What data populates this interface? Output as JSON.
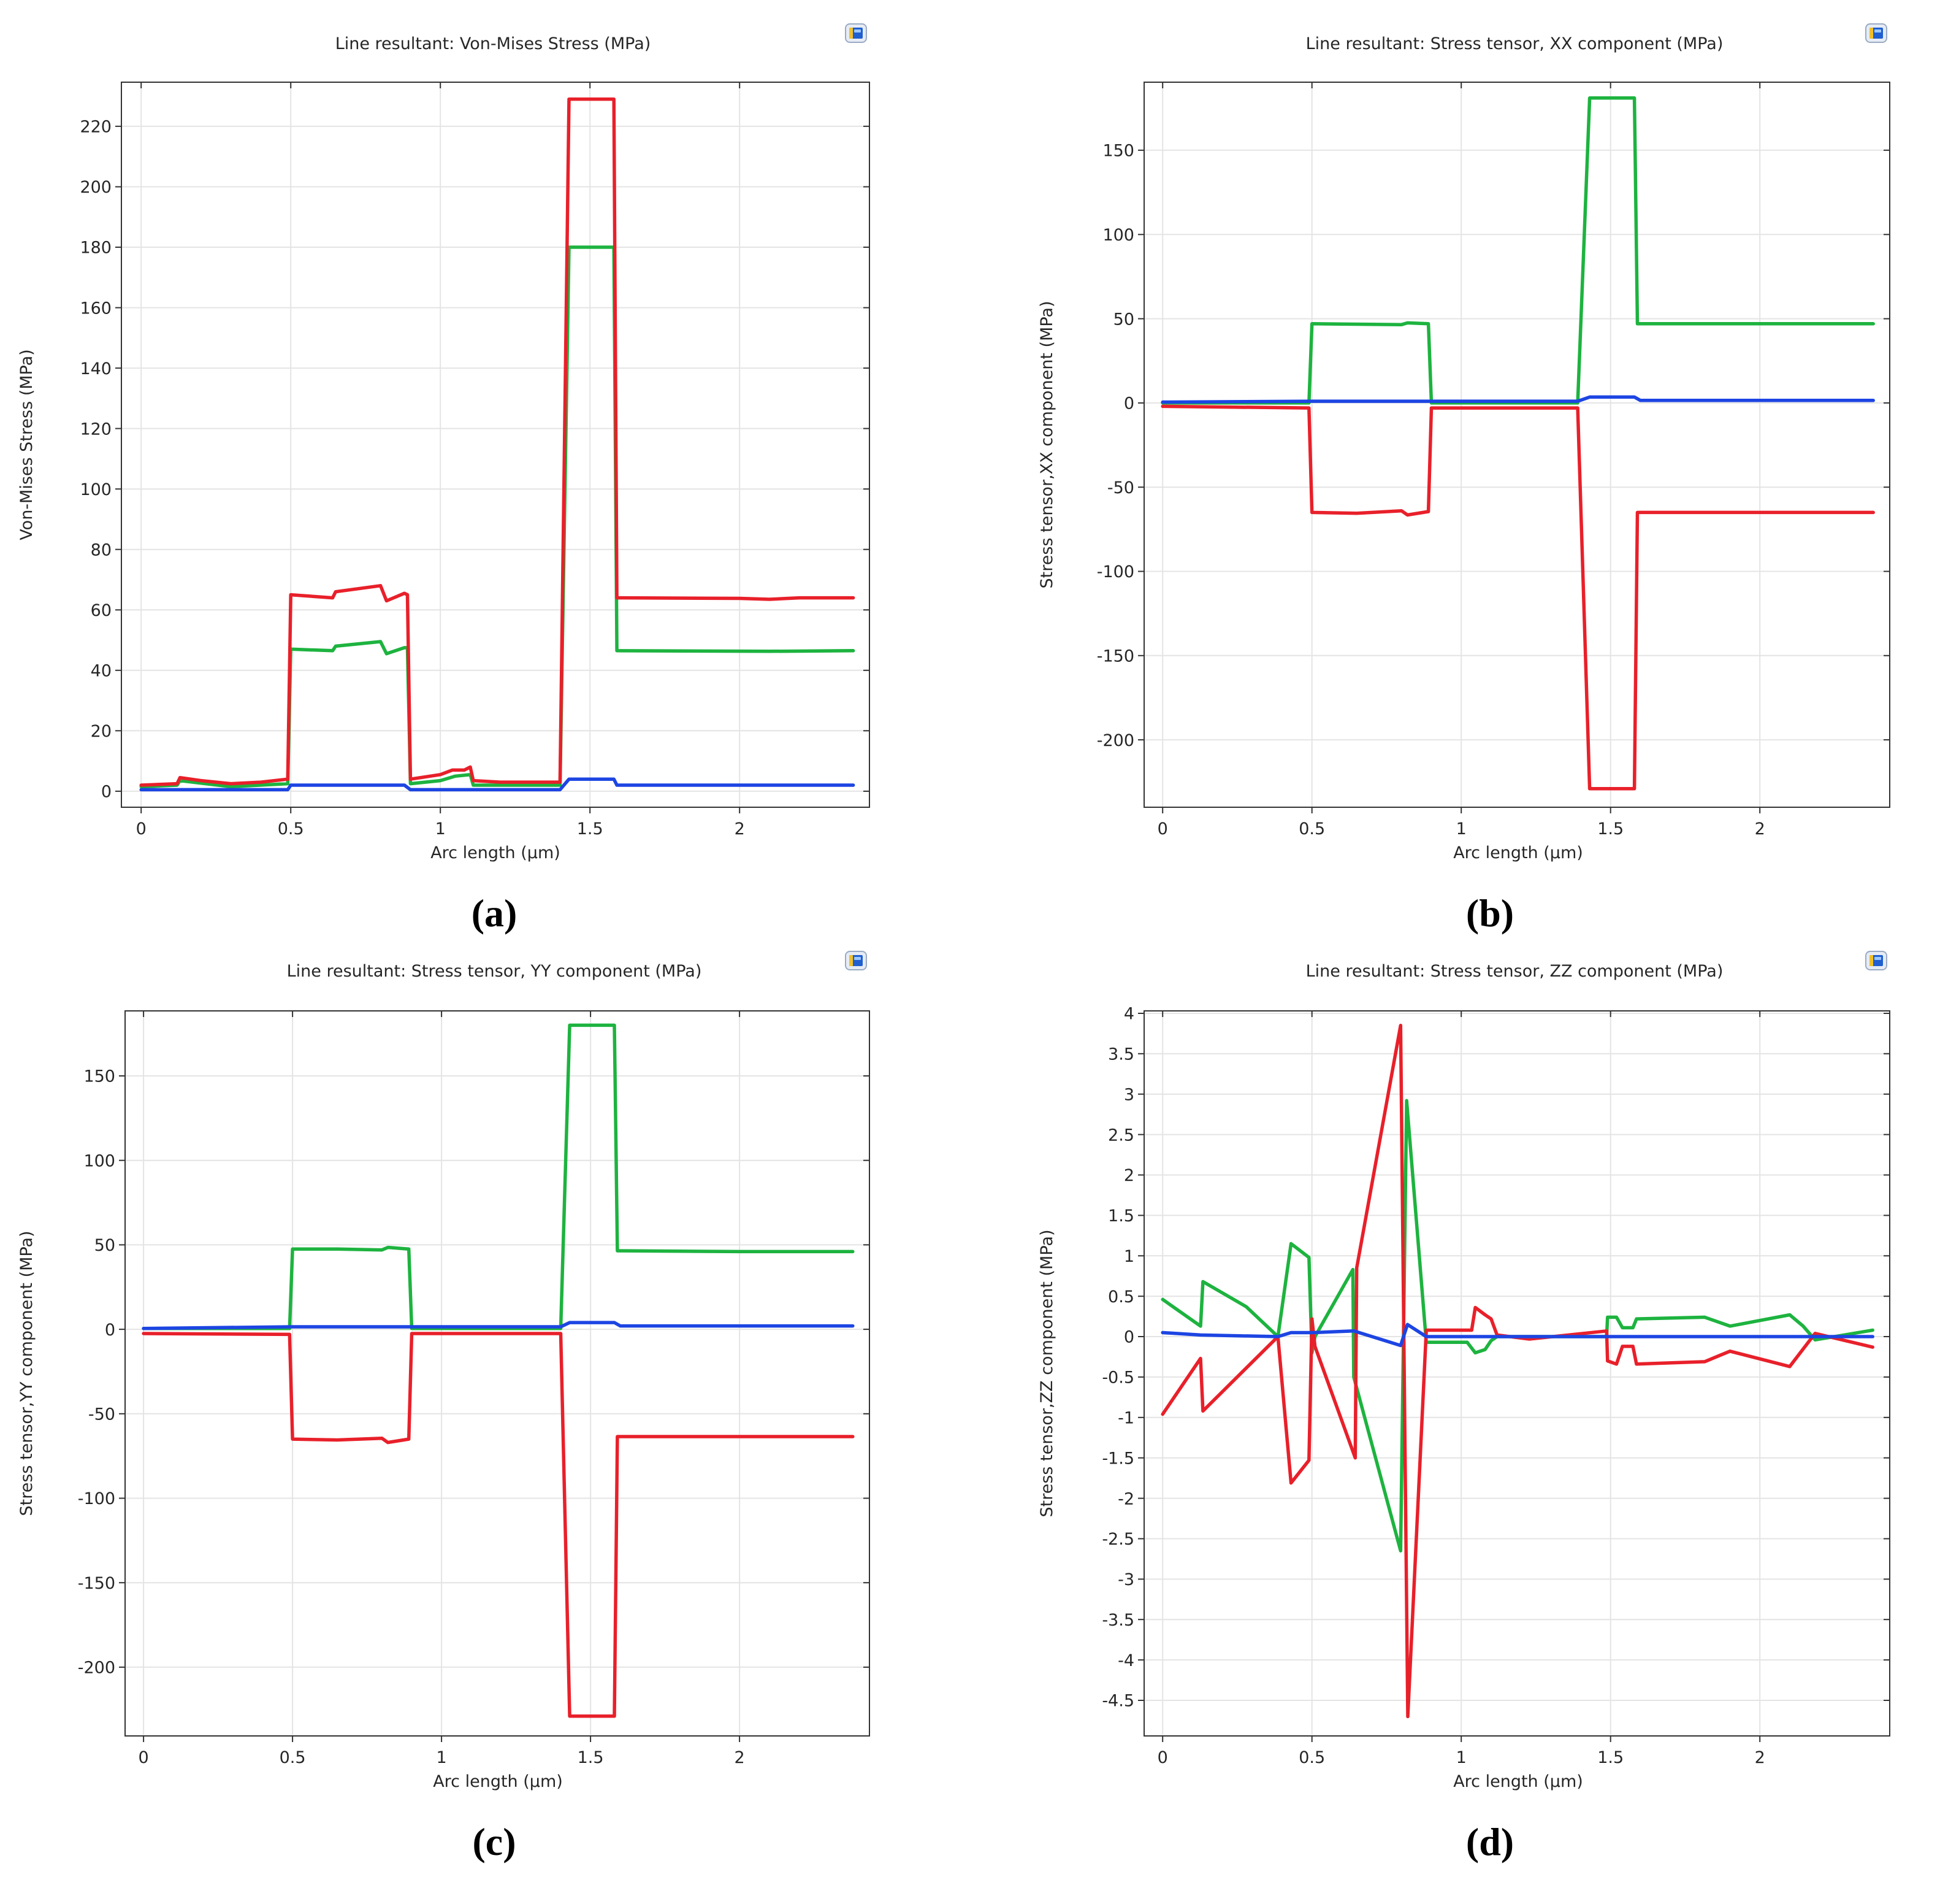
{
  "toolbar_icon": "plot-toolbar-icon",
  "chart_data": [
    {
      "type": "line",
      "title": "Line resultant: Von-Mises Stress (MPa)",
      "xlabel": "Arc length (μm)",
      "ylabel": "Von-Mises Stress (MPa)",
      "caption": "(a)",
      "grid": true,
      "xlim": [
        -0.066,
        2.434
      ],
      "ylim": [
        -5.3,
        234.6
      ],
      "xticks": [
        0,
        0.5,
        1,
        1.5,
        2
      ],
      "xtick_labels": [
        "0",
        "0.5",
        "1",
        "1.5",
        "2"
      ],
      "yticks": [
        0,
        20,
        40,
        60,
        80,
        100,
        120,
        140,
        160,
        180,
        200,
        220
      ],
      "ytick_labels": [
        "0",
        "20",
        "40",
        "60",
        "80",
        "100",
        "120",
        "140",
        "160",
        "180",
        "200",
        "220"
      ],
      "series": [
        {
          "color": "#1db33f",
          "points": [
            [
              0,
              1.5
            ],
            [
              0.12,
              2
            ],
            [
              0.13,
              3.5
            ],
            [
              0.3,
              1.5
            ],
            [
              0.49,
              2.5
            ],
            [
              0.5,
              47
            ],
            [
              0.64,
              46.5
            ],
            [
              0.65,
              48
            ],
            [
              0.8,
              49.5
            ],
            [
              0.82,
              45.5
            ],
            [
              0.88,
              47.5
            ],
            [
              0.89,
              47.5
            ],
            [
              0.9,
              2.5
            ],
            [
              1.0,
              3.5
            ],
            [
              1.05,
              5
            ],
            [
              1.1,
              5.5
            ],
            [
              1.11,
              2
            ],
            [
              1.4,
              2
            ],
            [
              1.43,
              180
            ],
            [
              1.58,
              180
            ],
            [
              1.59,
              46.5
            ],
            [
              2.1,
              46.3
            ],
            [
              2.38,
              46.5
            ]
          ]
        },
        {
          "color": "#e8202a",
          "points": [
            [
              0,
              2
            ],
            [
              0.12,
              2.5
            ],
            [
              0.13,
              4.5
            ],
            [
              0.2,
              3.5
            ],
            [
              0.3,
              2.5
            ],
            [
              0.4,
              3
            ],
            [
              0.49,
              4
            ],
            [
              0.5,
              65
            ],
            [
              0.64,
              64
            ],
            [
              0.65,
              66
            ],
            [
              0.8,
              68
            ],
            [
              0.82,
              63
            ],
            [
              0.88,
              65.5
            ],
            [
              0.89,
              65
            ],
            [
              0.9,
              4
            ],
            [
              1.0,
              5.5
            ],
            [
              1.04,
              7
            ],
            [
              1.08,
              7
            ],
            [
              1.1,
              8
            ],
            [
              1.11,
              3.5
            ],
            [
              1.2,
              3
            ],
            [
              1.4,
              3
            ],
            [
              1.43,
              229
            ],
            [
              1.58,
              229
            ],
            [
              1.59,
              64
            ],
            [
              2.0,
              63.8
            ],
            [
              2.1,
              63.5
            ],
            [
              2.2,
              64
            ],
            [
              2.38,
              64
            ]
          ]
        },
        {
          "color": "#1d45e3",
          "points": [
            [
              0,
              0.5
            ],
            [
              0.49,
              0.5
            ],
            [
              0.5,
              2
            ],
            [
              0.88,
              2
            ],
            [
              0.9,
              0.5
            ],
            [
              1.4,
              0.5
            ],
            [
              1.43,
              4
            ],
            [
              1.58,
              4
            ],
            [
              1.59,
              2
            ],
            [
              2.38,
              2
            ]
          ]
        }
      ]
    },
    {
      "type": "line",
      "title": "Line resultant: Stress tensor, XX component (MPa)",
      "xlabel": "Arc length (μm)",
      "ylabel": "Stress tensor,XX component (MPa)",
      "caption": "(b)",
      "grid": true,
      "xlim": [
        -0.062,
        2.435
      ],
      "ylim": [
        -240,
        190.4
      ],
      "xticks": [
        0,
        0.5,
        1,
        1.5,
        2
      ],
      "xtick_labels": [
        "0",
        "0.5",
        "1",
        "1.5",
        "2"
      ],
      "yticks": [
        -200,
        -150,
        -100,
        -50,
        0,
        50,
        100,
        150
      ],
      "ytick_labels": [
        "-200",
        "-150",
        "-100",
        "-50",
        "0",
        "50",
        "100",
        "150"
      ],
      "series": [
        {
          "color": "#1db33f",
          "points": [
            [
              0,
              0
            ],
            [
              0.49,
              0
            ],
            [
              0.5,
              47
            ],
            [
              0.8,
              46.5
            ],
            [
              0.82,
              47.5
            ],
            [
              0.89,
              47
            ],
            [
              0.9,
              0
            ],
            [
              1.39,
              0
            ],
            [
              1.43,
              181
            ],
            [
              1.58,
              181
            ],
            [
              1.59,
              47
            ],
            [
              2.38,
              47
            ]
          ]
        },
        {
          "color": "#e8202a",
          "points": [
            [
              0,
              -2
            ],
            [
              0.49,
              -3
            ],
            [
              0.5,
              -65
            ],
            [
              0.65,
              -65.5
            ],
            [
              0.8,
              -64
            ],
            [
              0.82,
              -66.5
            ],
            [
              0.89,
              -64.5
            ],
            [
              0.9,
              -3
            ],
            [
              1.39,
              -3
            ],
            [
              1.43,
              -229
            ],
            [
              1.58,
              -229
            ],
            [
              1.59,
              -65
            ],
            [
              2.38,
              -65
            ]
          ]
        },
        {
          "color": "#1d45e3",
          "points": [
            [
              0,
              0.5
            ],
            [
              0.5,
              1
            ],
            [
              0.9,
              1
            ],
            [
              1.39,
              1
            ],
            [
              1.43,
              3.5
            ],
            [
              1.58,
              3.5
            ],
            [
              1.6,
              1.5
            ],
            [
              2.38,
              1.5
            ]
          ]
        }
      ]
    },
    {
      "type": "line",
      "title": "Line resultant: Stress tensor, YY component (MPa)",
      "xlabel": "Arc length (μm)",
      "ylabel": "Stress tensor,YY component (MPa)",
      "caption": "(c)",
      "grid": true,
      "xlim": [
        -0.062,
        2.436
      ],
      "ylim": [
        -240.7,
        188.5
      ],
      "xticks": [
        0,
        0.5,
        1,
        1.5,
        2
      ],
      "xtick_labels": [
        "0",
        "0.5",
        "1",
        "1.5",
        "2"
      ],
      "yticks": [
        -200,
        -150,
        -100,
        -50,
        0,
        50,
        100,
        150
      ],
      "ytick_labels": [
        "-200",
        "-150",
        "-100",
        "-50",
        "0",
        "50",
        "100",
        "150"
      ],
      "series": [
        {
          "color": "#1db33f",
          "points": [
            [
              0,
              0.5
            ],
            [
              0.49,
              0.5
            ],
            [
              0.5,
              47.5
            ],
            [
              0.65,
              47.5
            ],
            [
              0.8,
              47
            ],
            [
              0.82,
              48.5
            ],
            [
              0.89,
              47.5
            ],
            [
              0.9,
              0.5
            ],
            [
              1.4,
              0.5
            ],
            [
              1.43,
              180
            ],
            [
              1.58,
              180
            ],
            [
              1.59,
              46.5
            ],
            [
              2.0,
              46
            ],
            [
              2.38,
              46
            ]
          ]
        },
        {
          "color": "#e8202a",
          "points": [
            [
              0,
              -2.5
            ],
            [
              0.49,
              -3
            ],
            [
              0.5,
              -65
            ],
            [
              0.65,
              -65.5
            ],
            [
              0.8,
              -64.5
            ],
            [
              0.82,
              -67
            ],
            [
              0.89,
              -65
            ],
            [
              0.9,
              -2.5
            ],
            [
              1.4,
              -2.5
            ],
            [
              1.43,
              -229
            ],
            [
              1.58,
              -229
            ],
            [
              1.59,
              -63.5
            ],
            [
              2.38,
              -63.5
            ]
          ]
        },
        {
          "color": "#1d45e3",
          "points": [
            [
              0,
              0.5
            ],
            [
              0.5,
              1.5
            ],
            [
              0.9,
              1.5
            ],
            [
              1.4,
              1.5
            ],
            [
              1.43,
              4
            ],
            [
              1.58,
              4
            ],
            [
              1.6,
              2
            ],
            [
              2.38,
              2
            ]
          ]
        }
      ]
    },
    {
      "type": "line",
      "title": "Line resultant: Stress tensor, ZZ component (MPa)",
      "xlabel": "Arc length (μm)",
      "ylabel": "Stress tensor,ZZ component (MPa)",
      "caption": "(d)",
      "grid": true,
      "xlim": [
        -0.062,
        2.435
      ],
      "ylim": [
        -4.94,
        4.03
      ],
      "xticks": [
        0,
        0.5,
        1,
        1.5,
        2
      ],
      "xtick_labels": [
        "0",
        "0.5",
        "1",
        "1.5",
        "2"
      ],
      "yticks": [
        -4.5,
        -4,
        -3.5,
        -3,
        -2.5,
        -2,
        -1.5,
        -1,
        -0.5,
        0,
        0.5,
        1,
        1.5,
        2,
        2.5,
        3,
        3.5,
        4
      ],
      "ytick_labels": [
        "-4.5",
        "-4",
        "-3.5",
        "-3",
        "-2.5",
        "-2",
        "-1.5",
        "-1",
        "-0.5",
        "0",
        "0.5",
        "1",
        "1.5",
        "2",
        "2.5",
        "3",
        "3.5",
        "4"
      ],
      "series": [
        {
          "color": "#1db33f",
          "points": [
            [
              0,
              0.46
            ],
            [
              0.127,
              0.13
            ],
            [
              0.135,
              0.68
            ],
            [
              0.28,
              0.37
            ],
            [
              0.386,
              0
            ],
            [
              0.43,
              1.15
            ],
            [
              0.49,
              0.98
            ],
            [
              0.5,
              -0.2
            ],
            [
              0.51,
              0
            ],
            [
              0.637,
              0.83
            ],
            [
              0.64,
              -0.5
            ],
            [
              0.797,
              -2.65
            ],
            [
              0.817,
              2.92
            ],
            [
              0.883,
              -0.07
            ],
            [
              1.02,
              -0.07
            ],
            [
              1.047,
              -0.2
            ],
            [
              1.08,
              -0.16
            ],
            [
              1.1,
              -0.05
            ],
            [
              1.12,
              0
            ],
            [
              1.487,
              0
            ],
            [
              1.49,
              0.24
            ],
            [
              1.52,
              0.24
            ],
            [
              1.54,
              0.11
            ],
            [
              1.575,
              0.11
            ],
            [
              1.587,
              0.22
            ],
            [
              1.815,
              0.24
            ],
            [
              1.9,
              0.13
            ],
            [
              2.1,
              0.27
            ],
            [
              2.145,
              0.13
            ],
            [
              2.185,
              -0.04
            ],
            [
              2.378,
              0.08
            ]
          ]
        },
        {
          "color": "#e8202a",
          "points": [
            [
              0,
              -0.96
            ],
            [
              0.127,
              -0.27
            ],
            [
              0.135,
              -0.92
            ],
            [
              0.386,
              0
            ],
            [
              0.43,
              -1.81
            ],
            [
              0.49,
              -1.53
            ],
            [
              0.5,
              0.22
            ],
            [
              0.51,
              -0.12
            ],
            [
              0.645,
              -1.5
            ],
            [
              0.65,
              0.85
            ],
            [
              0.797,
              3.85
            ],
            [
              0.821,
              -4.7
            ],
            [
              0.883,
              0.08
            ],
            [
              1.035,
              0.08
            ],
            [
              1.047,
              0.36
            ],
            [
              1.08,
              0.27
            ],
            [
              1.1,
              0.22
            ],
            [
              1.12,
              0.02
            ],
            [
              1.228,
              -0.03
            ],
            [
              1.487,
              0.07
            ],
            [
              1.49,
              -0.3
            ],
            [
              1.52,
              -0.34
            ],
            [
              1.54,
              -0.12
            ],
            [
              1.575,
              -0.12
            ],
            [
              1.587,
              -0.34
            ],
            [
              1.815,
              -0.31
            ],
            [
              1.9,
              -0.18
            ],
            [
              2.1,
              -0.37
            ],
            [
              2.185,
              0.04
            ],
            [
              2.378,
              -0.13
            ]
          ]
        },
        {
          "color": "#1d45e3",
          "points": [
            [
              0,
              0.05
            ],
            [
              0.127,
              0.02
            ],
            [
              0.386,
              0
            ],
            [
              0.43,
              0.05
            ],
            [
              0.5,
              0.05
            ],
            [
              0.64,
              0.07
            ],
            [
              0.797,
              -0.11
            ],
            [
              0.82,
              0.15
            ],
            [
              0.883,
              0
            ],
            [
              1.5,
              0
            ],
            [
              2.378,
              0
            ]
          ]
        }
      ]
    }
  ]
}
